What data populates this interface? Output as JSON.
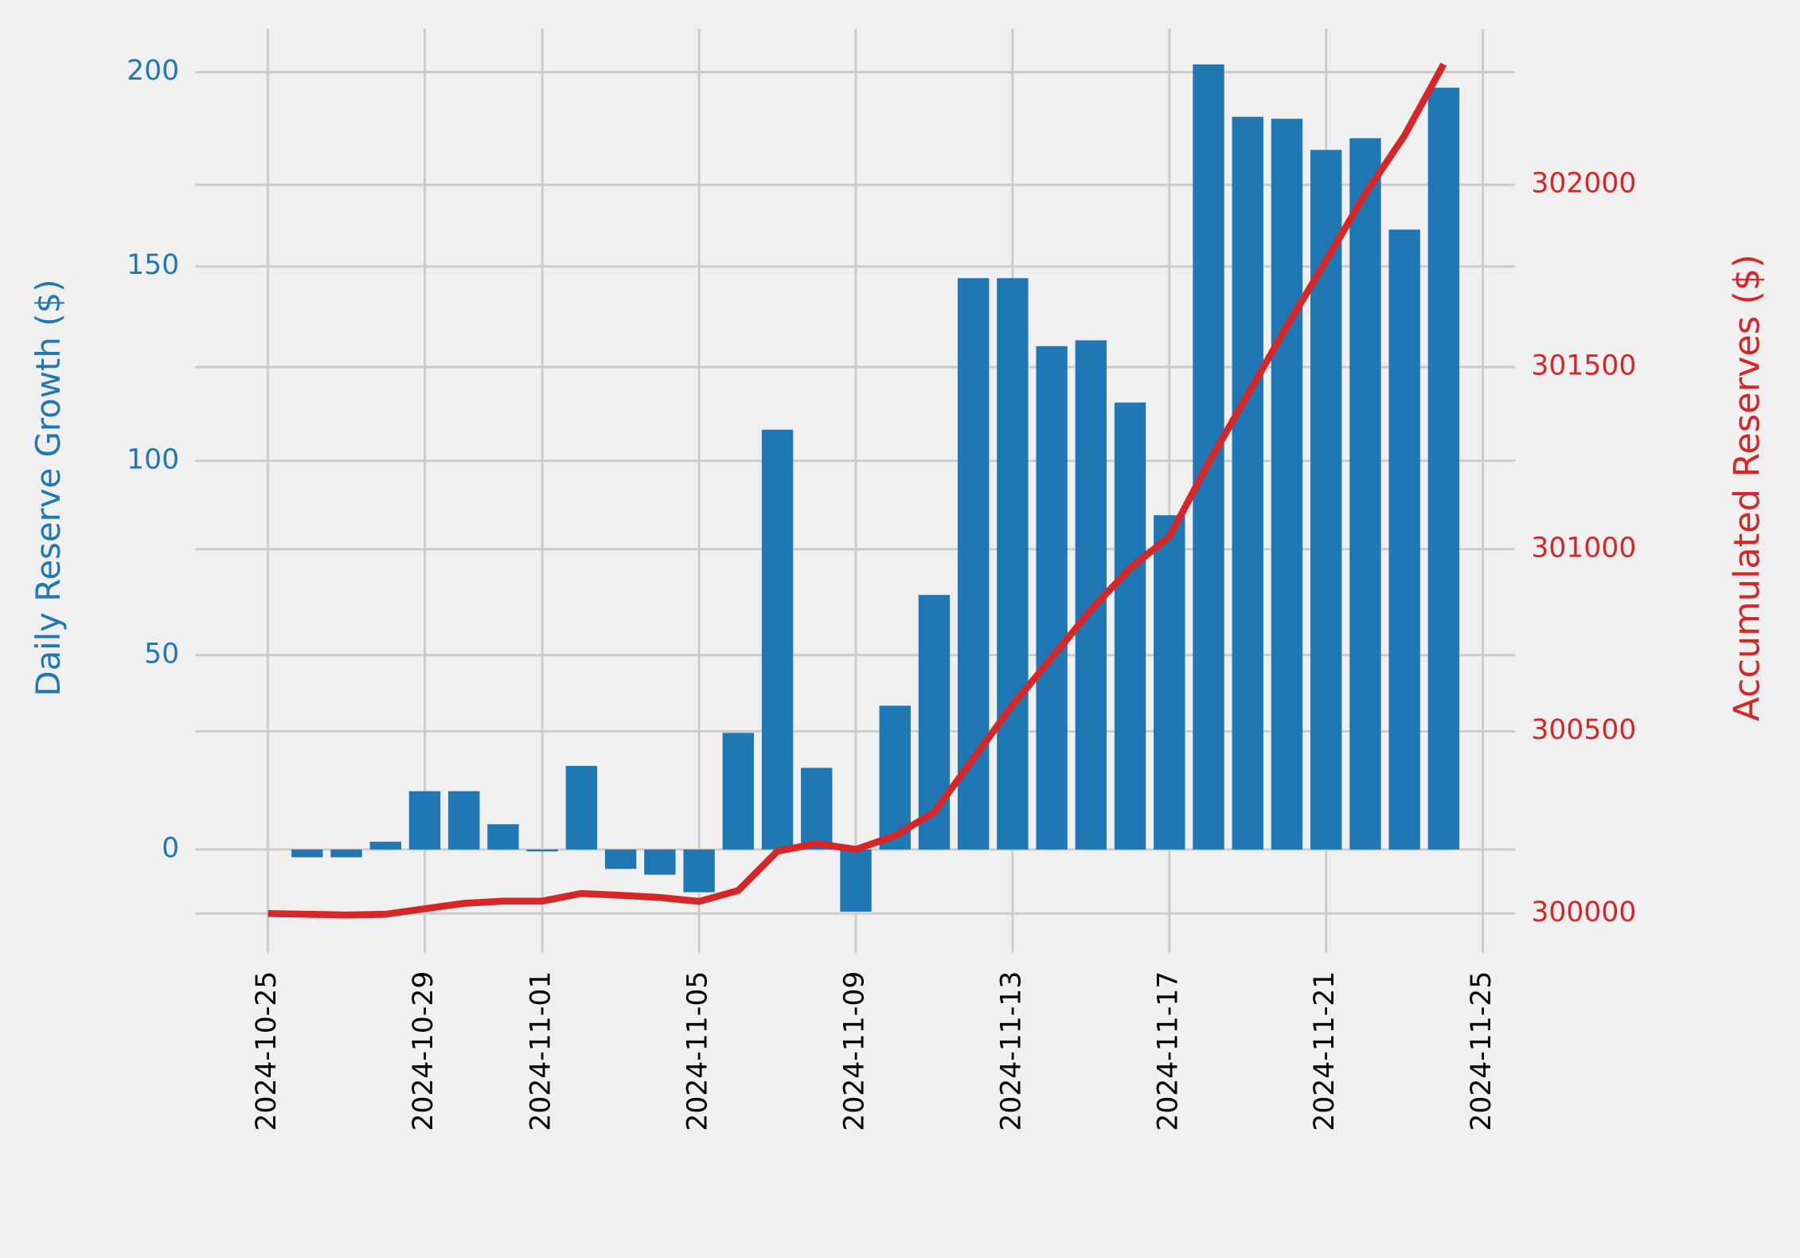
{
  "chart_data": {
    "type": "bar-line",
    "x": [
      "2024-10-25",
      "2024-10-26",
      "2024-10-27",
      "2024-10-28",
      "2024-10-29",
      "2024-10-30",
      "2024-10-31",
      "2024-11-01",
      "2024-11-02",
      "2024-11-03",
      "2024-11-04",
      "2024-11-05",
      "2024-11-06",
      "2024-11-07",
      "2024-11-08",
      "2024-11-09",
      "2024-11-10",
      "2024-11-11",
      "2024-11-12",
      "2024-11-13",
      "2024-11-14",
      "2024-11-15",
      "2024-11-16",
      "2024-11-17",
      "2024-11-18",
      "2024-11-19",
      "2024-11-20",
      "2024-11-21",
      "2024-11-22",
      "2024-11-23",
      "2024-11-24"
    ],
    "series": [
      {
        "type": "bar",
        "color": "#1f77b4",
        "values": [
          null,
          -2,
          -2,
          2,
          15,
          15,
          6.5,
          -0.5,
          21.5,
          -5,
          -6.5,
          -11,
          30,
          108,
          21,
          -16,
          37,
          65.5,
          147,
          147,
          129.5,
          131,
          115,
          86,
          202,
          188.5,
          188,
          180,
          183,
          159.5,
          196
        ]
      },
      {
        "type": "line",
        "axis": "y2",
        "color": "#d62728",
        "values": [
          300000,
          299998,
          299996,
          299998,
          300013,
          300028,
          300034,
          300034,
          300055,
          300050,
          300044,
          300033,
          300063,
          300171,
          300192,
          300176,
          300213,
          300278,
          300425,
          300572,
          300702,
          300833,
          300948,
          301034,
          301236,
          301424,
          301612,
          301792,
          301975,
          302135,
          302331
        ]
      }
    ],
    "ylabel": "Daily Reserve Growth ($)",
    "y2label": "Accumulated Reserves ($)",
    "xlim": [
      "2024-10-23",
      "2024-11-26"
    ],
    "xticks": [
      "2024-10-25",
      "2024-10-29",
      "2024-11-01",
      "2024-11-05",
      "2024-11-09",
      "2024-11-13",
      "2024-11-17",
      "2024-11-21",
      "2024-11-25"
    ],
    "ylim": [
      -23.6,
      210
    ],
    "yticks": [
      0,
      50,
      100,
      150,
      200
    ],
    "y2lim": [
      299924,
      302416
    ],
    "y2ticks": [
      300000,
      300500,
      301000,
      301500,
      302000
    ],
    "grid": true
  }
}
